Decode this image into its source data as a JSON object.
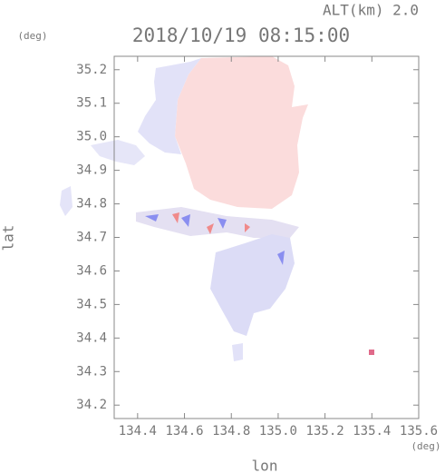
{
  "chart_data": {
    "type": "map",
    "title": "2018/10/19 08:15:00",
    "subtitle": "ALT(km) 2.0",
    "x_label": "lon",
    "y_label": "lat",
    "x_unit": "(deg)",
    "y_unit": "(deg)",
    "xlim": [
      134.3,
      135.6
    ],
    "ylim": [
      34.16,
      35.24
    ],
    "xticks": [
      134.4,
      134.6,
      134.8,
      {
        "value": 135,
        "label": "135.0"
      },
      135.2,
      135.4,
      135.6
    ],
    "yticks": [
      34.2,
      34.3,
      34.4,
      34.5,
      34.6,
      34.7,
      34.8,
      34.9,
      {
        "value": 35,
        "label": "35.0"
      },
      35.1,
      35.2
    ]
  }
}
